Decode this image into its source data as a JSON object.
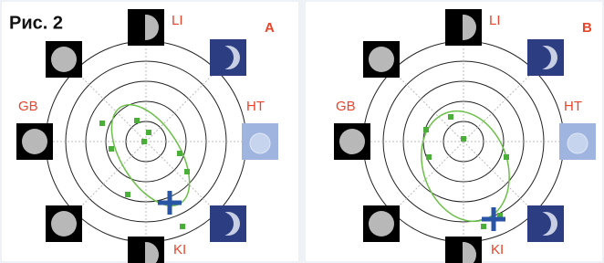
{
  "figure": {
    "caption": "Рис. 2",
    "panels": [
      {
        "letter": "A",
        "labels": {
          "top": "LI",
          "right": "HT",
          "bottom": "KI",
          "left": "GB"
        }
      },
      {
        "letter": "B",
        "labels": {
          "top": "LI",
          "right": "HT",
          "bottom": "KI",
          "left": "GB"
        }
      }
    ]
  }
}
